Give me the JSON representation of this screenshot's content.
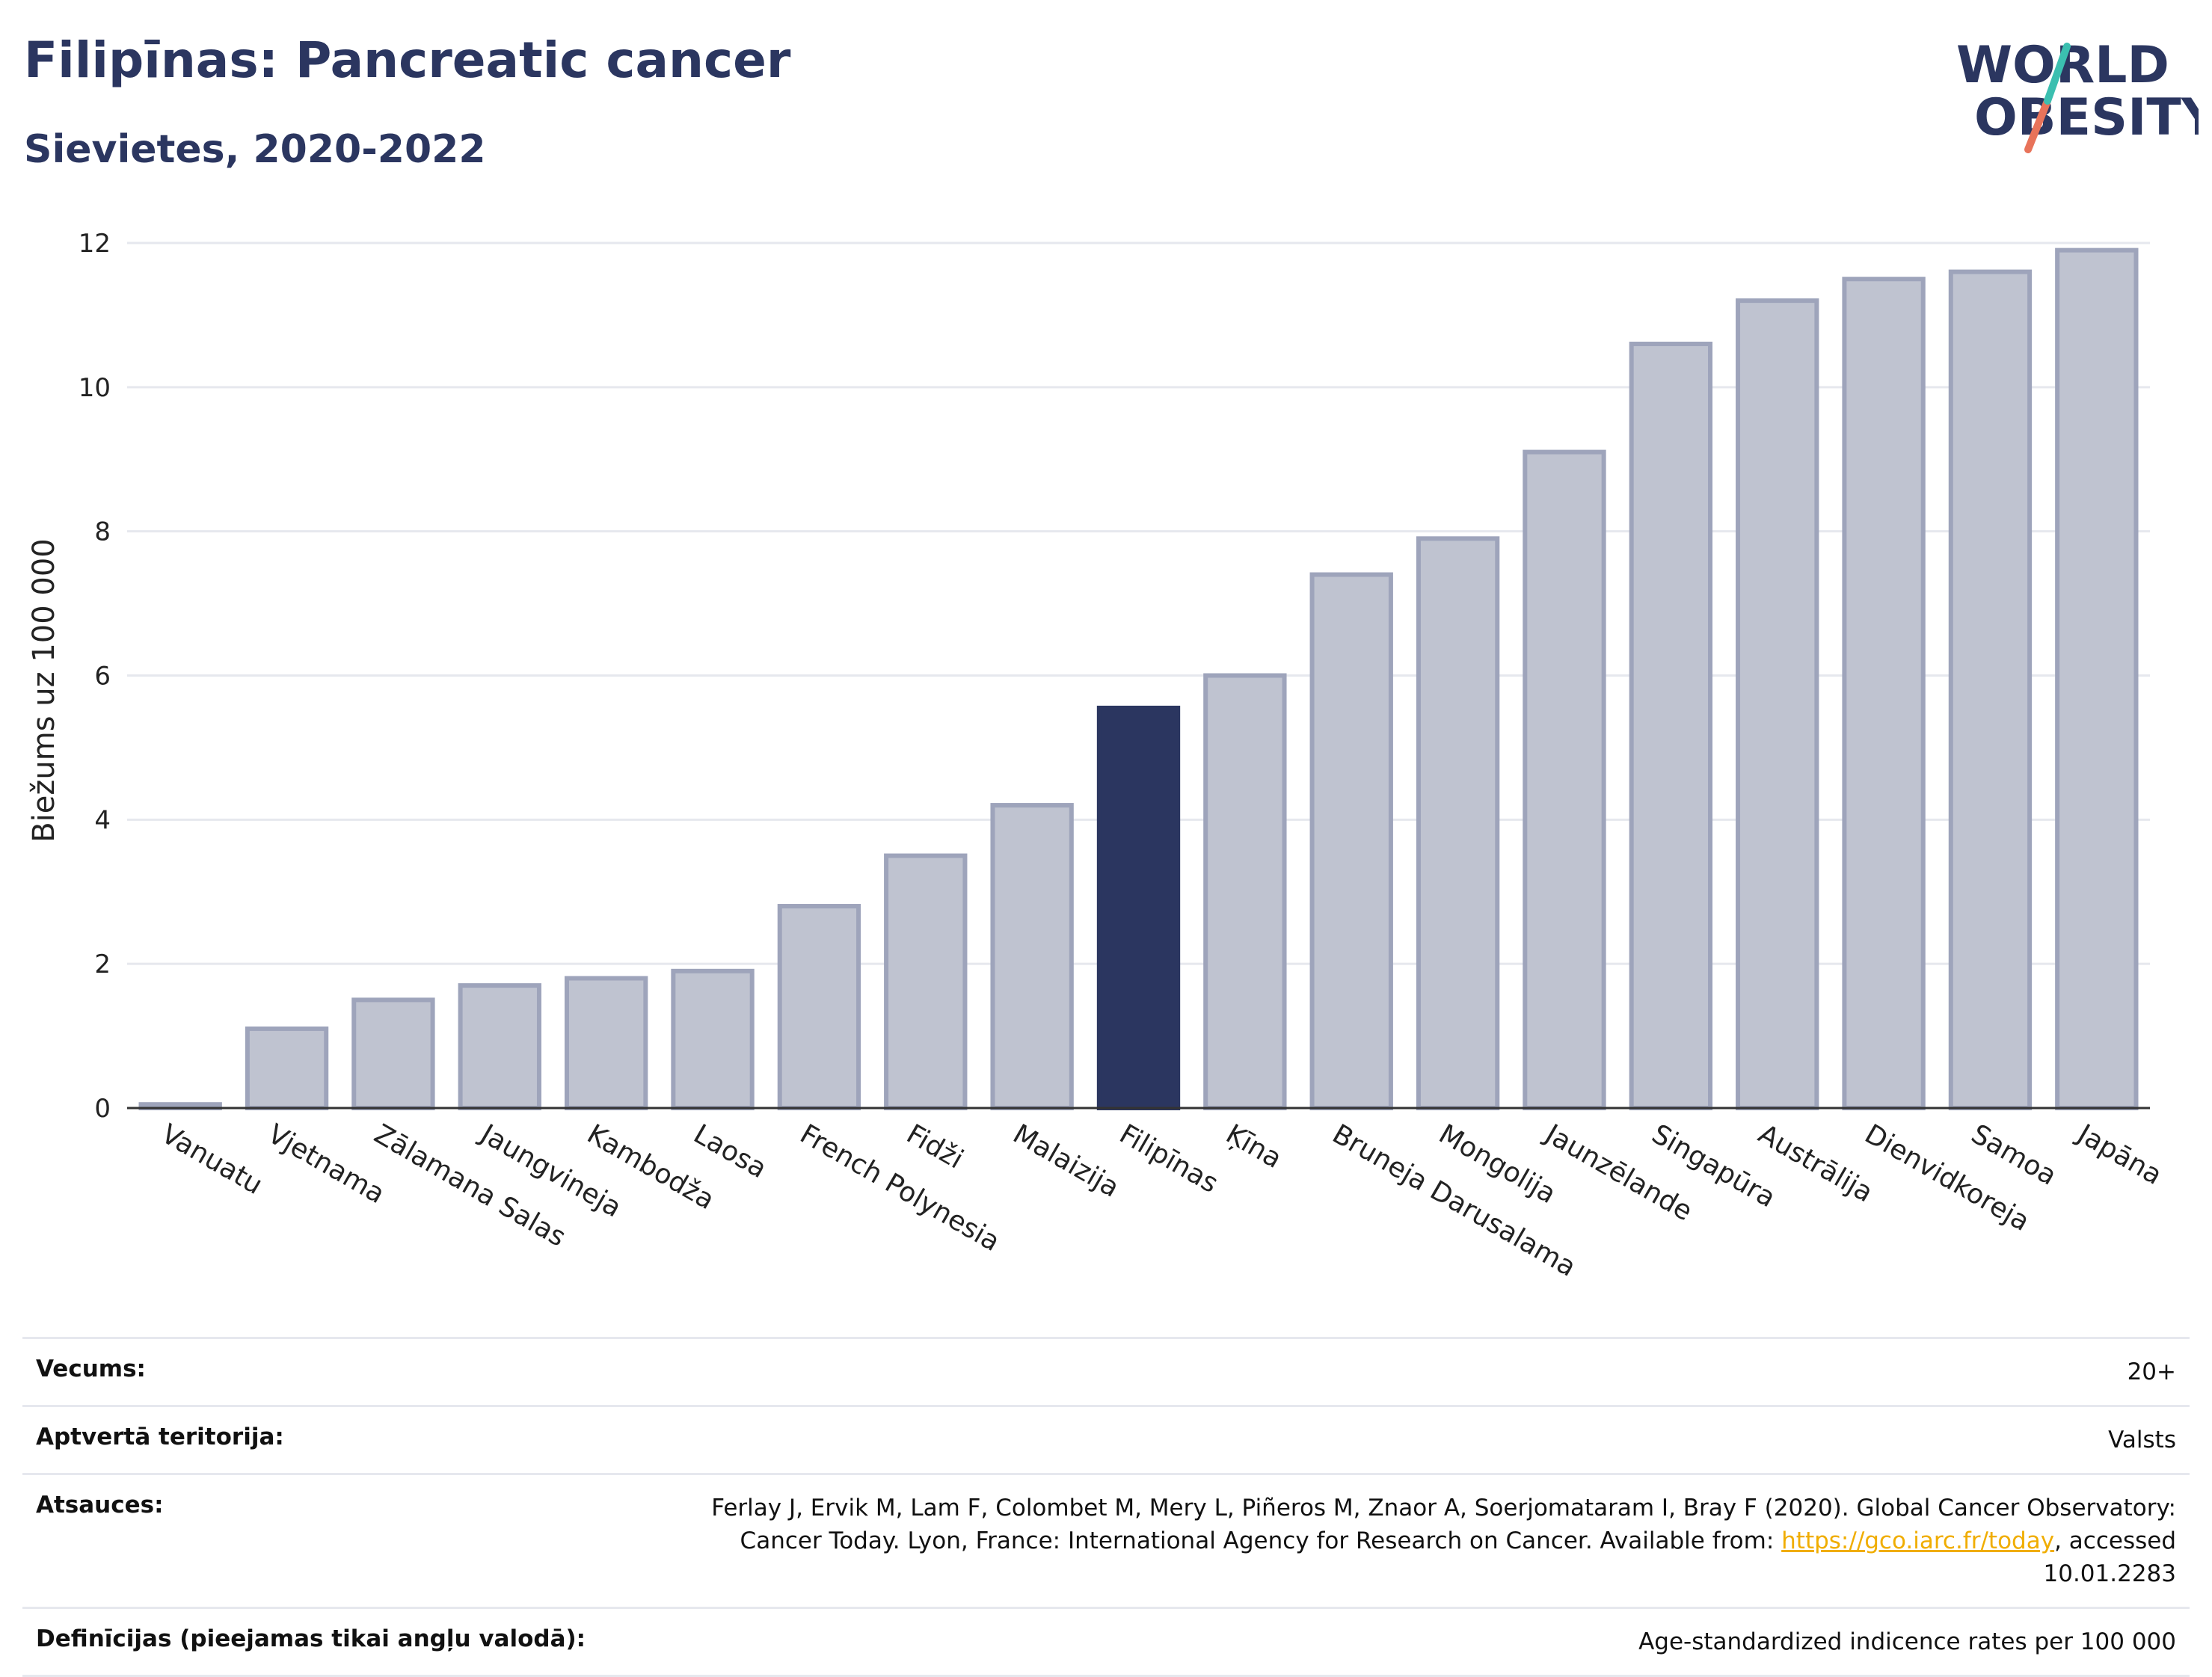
{
  "header": {
    "title": "Filipīnas: Pancreatic cancer",
    "subtitle": "Sievietes, 2020-2022"
  },
  "logo": {
    "line1": "WORLD",
    "line2": "OBESITY"
  },
  "chart_data": {
    "type": "bar",
    "ylabel": "Biežums uz 100 000",
    "ylim": [
      0,
      12
    ],
    "yticks": [
      0,
      2,
      4,
      6,
      8,
      10,
      12
    ],
    "categories": [
      "Vanuatu",
      "Vjetnama",
      "Zālamana Salas",
      "Jaungvineja",
      "Kambodža",
      "Laosa",
      "French Polynesia",
      "Fidži",
      "Malaizija",
      "Filipīnas",
      "Ķīna",
      "Bruneja Darusalama",
      "Mongolija",
      "Jaunzēlande",
      "Singapūra",
      "Austrālija",
      "Dienvidkoreja",
      "Samoa",
      "Japāna"
    ],
    "values": [
      0.05,
      1.1,
      1.5,
      1.7,
      1.8,
      1.9,
      2.8,
      3.5,
      4.2,
      5.55,
      6.0,
      7.4,
      7.9,
      9.1,
      10.6,
      11.2,
      11.5,
      11.6,
      11.9
    ],
    "highlight": "Filipīnas",
    "colors": {
      "bar": "#bfc3d0",
      "bar_edge": "#9ea4bb",
      "highlight": "#2b3660",
      "grid": "#e6e8ee",
      "axis": "#333333"
    },
    "grid": true
  },
  "info": {
    "age_label": "Vecums:",
    "age_value": "20+",
    "coverage_label": "Aptvertā teritorija:",
    "coverage_value": "Valsts",
    "refs_label": "Atsauces:",
    "refs_text1": "Ferlay J, Ervik M, Lam F, Colombet M, Mery L, Piñeros M, Znaor A, Soerjomataram I, Bray F (2020). Global Cancer Observatory: Cancer Today. Lyon, France: International Agency for Research on Cancer. Available from: ",
    "refs_link": "https://gco.iarc.fr/today",
    "refs_text2": ", accessed 10.01.2283",
    "defs_label": "Definīcijas (pieejamas tikai angļu valodā):",
    "defs_value": "Age-standardized indicence rates per 100 000"
  }
}
